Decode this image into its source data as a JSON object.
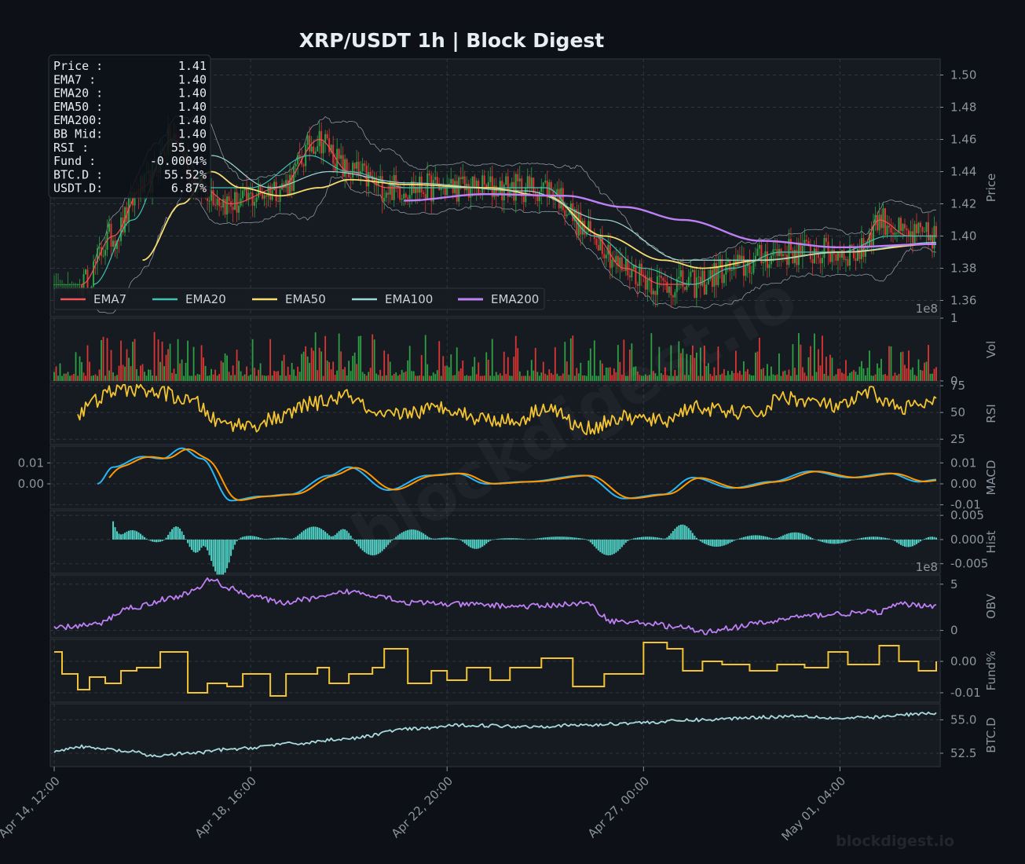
{
  "chart_data": {
    "type": "line",
    "title": "XRP/USDT  1h  |  Block Digest",
    "x_ticks": [
      "Apr 14, 12:00",
      "Apr 18, 16:00",
      "Apr 22, 20:00",
      "Apr 27, 00:00",
      "May 01, 04:00"
    ],
    "watermark_center": "blockdigest.io",
    "watermark_corner": "blockdigest.io",
    "info_box": [
      {
        "label": "Price :",
        "value": "1.41"
      },
      {
        "label": "EMA7  :",
        "value": "1.40"
      },
      {
        "label": "EMA20 :",
        "value": "1.40"
      },
      {
        "label": "EMA50 :",
        "value": "1.40"
      },
      {
        "label": "EMA200:",
        "value": "1.40"
      },
      {
        "label": "BB Mid:",
        "value": "1.40"
      },
      {
        "label": "RSI   :",
        "value": "55.90"
      },
      {
        "label": "Fund  :",
        "value": "-0.0004%"
      },
      {
        "label": "BTC.D :",
        "value": "55.52%"
      },
      {
        "label": "USDT.D:",
        "value": "6.87%"
      }
    ],
    "legend": [
      {
        "name": "EMA7",
        "color": "#f05454"
      },
      {
        "name": "EMA20",
        "color": "#3ec1b0"
      },
      {
        "name": "EMA50",
        "color": "#f7dc6f"
      },
      {
        "name": "EMA100",
        "color": "#9fd8d3"
      },
      {
        "name": "EMA200",
        "color": "#bf7ff5"
      }
    ],
    "colors": {
      "background": "#0d1117",
      "panel": "#161b22",
      "up": "#2ea043",
      "down": "#da3633",
      "rsi": "#f4c430",
      "macd": "#29b6f6",
      "signal": "#ff9800",
      "hist": "#4fd1c5",
      "obv": "#bf7ff5",
      "funding": "#f4c430",
      "btcd": "#a8dadc"
    },
    "panels": [
      {
        "name": "price",
        "ylabel": "Price",
        "ylim": [
          1.35,
          1.51
        ],
        "ticks": [
          "1.36",
          "1.38",
          "1.40",
          "1.42",
          "1.44",
          "1.46",
          "1.48",
          "1.50"
        ],
        "ema_anchors": {
          "EMA7": [
            [
              14,
              1.37
            ],
            [
              30,
              1.4
            ],
            [
              45,
              1.43
            ],
            [
              60,
              1.46
            ],
            [
              75,
              1.43
            ],
            [
              90,
              1.42
            ],
            [
              115,
              1.43
            ],
            [
              135,
              1.46
            ],
            [
              150,
              1.44
            ],
            [
              170,
              1.43
            ],
            [
              200,
              1.43
            ],
            [
              230,
              1.43
            ],
            [
              250,
              1.43
            ],
            [
              275,
              1.4
            ],
            [
              290,
              1.38
            ],
            [
              310,
              1.37
            ],
            [
              325,
              1.37
            ],
            [
              345,
              1.38
            ],
            [
              370,
              1.39
            ],
            [
              390,
              1.39
            ],
            [
              410,
              1.39
            ],
            [
              420,
              1.41
            ],
            [
              435,
              1.4
            ],
            [
              449,
              1.4
            ]
          ],
          "EMA20": [
            [
              20,
              1.37
            ],
            [
              40,
              1.41
            ],
            [
              60,
              1.46
            ],
            [
              80,
              1.43
            ],
            [
              100,
              1.43
            ],
            [
              130,
              1.45
            ],
            [
              150,
              1.44
            ],
            [
              180,
              1.43
            ],
            [
              220,
              1.43
            ],
            [
              250,
              1.43
            ],
            [
              275,
              1.4
            ],
            [
              300,
              1.38
            ],
            [
              325,
              1.37
            ],
            [
              345,
              1.38
            ],
            [
              370,
              1.39
            ],
            [
              400,
              1.39
            ],
            [
              425,
              1.4
            ],
            [
              449,
              1.4
            ]
          ],
          "EMA50": [
            [
              45,
              1.385
            ],
            [
              65,
              1.42
            ],
            [
              80,
              1.44
            ],
            [
              95,
              1.43
            ],
            [
              115,
              1.425
            ],
            [
              135,
              1.43
            ],
            [
              150,
              1.435
            ],
            [
              180,
              1.432
            ],
            [
              220,
              1.43
            ],
            [
              250,
              1.425
            ],
            [
              280,
              1.4
            ],
            [
              310,
              1.385
            ],
            [
              330,
              1.38
            ],
            [
              360,
              1.385
            ],
            [
              400,
              1.39
            ],
            [
              449,
              1.395
            ]
          ],
          "EMA100": [
            [
              80,
              1.45
            ],
            [
              110,
              1.43
            ],
            [
              140,
              1.44
            ],
            [
              180,
              1.433
            ],
            [
              240,
              1.428
            ],
            [
              280,
              1.41
            ],
            [
              320,
              1.385
            ],
            [
              360,
              1.385
            ],
            [
              400,
              1.39
            ],
            [
              449,
              1.396
            ]
          ],
          "EMA200": [
            [
              178,
              1.422
            ],
            [
              220,
              1.426
            ],
            [
              260,
              1.425
            ],
            [
              290,
              1.418
            ],
            [
              320,
              1.41
            ],
            [
              360,
              1.397
            ],
            [
              400,
              1.393
            ],
            [
              449,
              1.395
            ]
          ]
        }
      },
      {
        "name": "volume",
        "ylabel": "Vol",
        "scale_label": "1e8",
        "ticks": [
          "0",
          "1"
        ]
      },
      {
        "name": "rsi",
        "ylabel": "RSI",
        "ylim": [
          20,
          78
        ],
        "ticks": [
          "25",
          "50",
          "75"
        ],
        "anchors": [
          [
            12,
            48
          ],
          [
            20,
            60
          ],
          [
            30,
            70
          ],
          [
            40,
            72
          ],
          [
            55,
            68
          ],
          [
            70,
            60
          ],
          [
            85,
            40
          ],
          [
            100,
            38
          ],
          [
            115,
            45
          ],
          [
            130,
            58
          ],
          [
            150,
            65
          ],
          [
            165,
            45
          ],
          [
            180,
            50
          ],
          [
            200,
            55
          ],
          [
            215,
            45
          ],
          [
            235,
            42
          ],
          [
            250,
            55
          ],
          [
            270,
            35
          ],
          [
            290,
            45
          ],
          [
            310,
            42
          ],
          [
            325,
            55
          ],
          [
            345,
            50
          ],
          [
            360,
            50
          ],
          [
            370,
            65
          ],
          [
            385,
            60
          ],
          [
            400,
            55
          ],
          [
            415,
            68
          ],
          [
            430,
            55
          ],
          [
            449,
            58
          ]
        ]
      },
      {
        "name": "macd",
        "ylabel": "MACD",
        "ylim": [
          -0.012,
          0.018
        ],
        "left_ticks": [
          "0.01",
          "0.00"
        ],
        "right_ticks": [
          "0.01",
          "0.00",
          "-0.01"
        ],
        "anchors": [
          [
            22,
            0.0
          ],
          [
            30,
            0.008
          ],
          [
            45,
            0.013
          ],
          [
            55,
            0.012
          ],
          [
            65,
            0.017
          ],
          [
            75,
            0.012
          ],
          [
            90,
            -0.008
          ],
          [
            105,
            -0.006
          ],
          [
            120,
            -0.005
          ],
          [
            140,
            0.004
          ],
          [
            150,
            0.008
          ],
          [
            170,
            -0.003
          ],
          [
            190,
            0.004
          ],
          [
            205,
            0.005
          ],
          [
            220,
            0.0
          ],
          [
            240,
            0.001
          ],
          [
            270,
            0.004
          ],
          [
            290,
            -0.007
          ],
          [
            310,
            -0.005
          ],
          [
            325,
            0.003
          ],
          [
            345,
            -0.002
          ],
          [
            365,
            0.001
          ],
          [
            385,
            0.006
          ],
          [
            405,
            0.003
          ],
          [
            425,
            0.005
          ],
          [
            440,
            0.001
          ],
          [
            449,
            0.002
          ]
        ]
      },
      {
        "name": "histogram",
        "ylabel": "Hist",
        "ylim": [
          -0.007,
          0.006
        ],
        "ticks": [
          "0.005",
          "0.000",
          "-0.005"
        ],
        "scale_label": "1e8"
      },
      {
        "name": "obv",
        "ylabel": "OBV",
        "ylim": [
          -0.8,
          6
        ],
        "ticks": [
          "0",
          "5"
        ],
        "anchors": [
          [
            0,
            0.3
          ],
          [
            20,
            0.6
          ],
          [
            40,
            2.5
          ],
          [
            60,
            3.5
          ],
          [
            70,
            4.2
          ],
          [
            80,
            5.5
          ],
          [
            90,
            4.5
          ],
          [
            100,
            3.8
          ],
          [
            115,
            3.0
          ],
          [
            135,
            3.5
          ],
          [
            150,
            4.2
          ],
          [
            165,
            3.8
          ],
          [
            180,
            3.0
          ],
          [
            210,
            2.8
          ],
          [
            240,
            2.6
          ],
          [
            270,
            2.9
          ],
          [
            285,
            1.0
          ],
          [
            300,
            0.8
          ],
          [
            320,
            0.3
          ],
          [
            330,
            -0.2
          ],
          [
            345,
            0.3
          ],
          [
            360,
            0.8
          ],
          [
            380,
            1.5
          ],
          [
            400,
            1.8
          ],
          [
            420,
            2.0
          ],
          [
            430,
            2.8
          ],
          [
            449,
            2.7
          ]
        ]
      },
      {
        "name": "funding",
        "ylabel": "Fund%",
        "ylim": [
          -0.013,
          0.007
        ],
        "ticks": [
          "0.00",
          "-0.01"
        ],
        "steps": [
          [
            0,
            0.003
          ],
          [
            4,
            -0.004
          ],
          [
            12,
            -0.009
          ],
          [
            18,
            -0.005
          ],
          [
            26,
            -0.007
          ],
          [
            34,
            -0.003
          ],
          [
            42,
            -0.002
          ],
          [
            54,
            0.003
          ],
          [
            68,
            -0.01
          ],
          [
            78,
            -0.007
          ],
          [
            88,
            -0.008
          ],
          [
            96,
            -0.004
          ],
          [
            110,
            -0.011
          ],
          [
            118,
            -0.004
          ],
          [
            134,
            -0.002
          ],
          [
            140,
            -0.007
          ],
          [
            150,
            -0.004
          ],
          [
            162,
            -0.002
          ],
          [
            168,
            0.004
          ],
          [
            180,
            -0.007
          ],
          [
            192,
            -0.003
          ],
          [
            200,
            -0.006
          ],
          [
            210,
            -0.002
          ],
          [
            222,
            -0.006
          ],
          [
            232,
            -0.002
          ],
          [
            248,
            0.001
          ],
          [
            264,
            -0.008
          ],
          [
            280,
            -0.004
          ],
          [
            300,
            0.006
          ],
          [
            312,
            0.004
          ],
          [
            320,
            -0.003
          ],
          [
            330,
            0.0
          ],
          [
            340,
            -0.001
          ],
          [
            354,
            -0.003
          ],
          [
            368,
            -0.001
          ],
          [
            382,
            -0.002
          ],
          [
            394,
            0.003
          ],
          [
            404,
            -0.001
          ],
          [
            420,
            0.005
          ],
          [
            430,
            0.0
          ],
          [
            440,
            -0.003
          ],
          [
            449,
            0.0
          ]
        ]
      },
      {
        "name": "btc_dominance",
        "ylabel": "BTC.D",
        "ylim": [
          51.5,
          56.2
        ],
        "ticks": [
          "52.5",
          "55.0"
        ],
        "anchors": [
          [
            0,
            52.6
          ],
          [
            12,
            53.0
          ],
          [
            25,
            52.8
          ],
          [
            40,
            52.6
          ],
          [
            50,
            52.3
          ],
          [
            70,
            52.5
          ],
          [
            90,
            52.8
          ],
          [
            120,
            53.2
          ],
          [
            150,
            53.6
          ],
          [
            180,
            54.3
          ],
          [
            210,
            54.6
          ],
          [
            240,
            54.5
          ],
          [
            270,
            54.6
          ],
          [
            300,
            54.8
          ],
          [
            330,
            55.0
          ],
          [
            360,
            55.2
          ],
          [
            380,
            55.3
          ],
          [
            400,
            55.1
          ],
          [
            420,
            55.2
          ],
          [
            435,
            55.4
          ],
          [
            449,
            55.5
          ]
        ]
      }
    ]
  }
}
